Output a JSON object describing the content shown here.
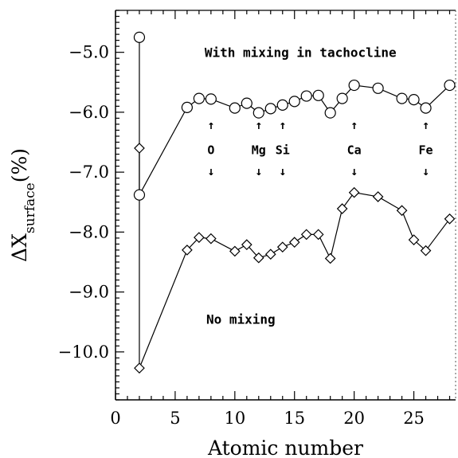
{
  "chart_data": {
    "type": "line",
    "xlabel": "Atomic number",
    "ylabel_main": "ΔX",
    "ylabel_sub": "surface",
    "ylabel_unit": "(%)",
    "xlim": [
      0,
      28.5
    ],
    "ylim": [
      -10.8,
      -4.3
    ],
    "xticks": [
      0,
      5,
      10,
      15,
      20,
      25
    ],
    "xtick_labels": [
      "0",
      "5",
      "10",
      "15",
      "20",
      "25"
    ],
    "yticks": [
      -10,
      -9,
      -8,
      -7,
      -6,
      -5
    ],
    "ytick_labels": [
      "−10.0",
      "−9.0",
      "−8.0",
      "−7.0",
      "−6.0",
      "−5.0"
    ],
    "grid": false,
    "series": [
      {
        "marker": "circle",
        "x": [
          2,
          2,
          6,
          7,
          8,
          10,
          11,
          12,
          13,
          14,
          15,
          16,
          17,
          18,
          19,
          20,
          22,
          24,
          25,
          26,
          28
        ],
        "y": [
          -4.75,
          -7.38,
          -5.92,
          -5.77,
          -5.78,
          -5.93,
          -5.85,
          -6.01,
          -5.94,
          -5.88,
          -5.82,
          -5.73,
          -5.72,
          -6.01,
          -5.77,
          -5.55,
          -5.6,
          -5.77,
          -5.79,
          -5.93,
          -5.55
        ]
      },
      {
        "marker": "diamond",
        "x": [
          2,
          2,
          6,
          7,
          8,
          10,
          11,
          12,
          13,
          14,
          15,
          16,
          17,
          18,
          19,
          20,
          22,
          24,
          25,
          26,
          28
        ],
        "y": [
          -6.6,
          -10.27,
          -8.3,
          -8.09,
          -8.11,
          -8.32,
          -8.21,
          -8.43,
          -8.37,
          -8.25,
          -8.17,
          -8.04,
          -8.04,
          -8.44,
          -7.61,
          -7.34,
          -7.41,
          -7.64,
          -8.13,
          -8.31,
          -7.78
        ]
      }
    ],
    "annotations": [
      {
        "text": "With mixing in tachocline",
        "x": 15.5,
        "y": -5.0
      },
      {
        "text": "No mixing",
        "x": 10.5,
        "y": -9.45
      }
    ],
    "element_markers": [
      {
        "label": "O",
        "x": 8
      },
      {
        "label": "Mg",
        "x": 12
      },
      {
        "label": "Si",
        "x": 14
      },
      {
        "label": "Ca",
        "x": 20
      },
      {
        "label": "Fe",
        "x": 26
      }
    ]
  }
}
